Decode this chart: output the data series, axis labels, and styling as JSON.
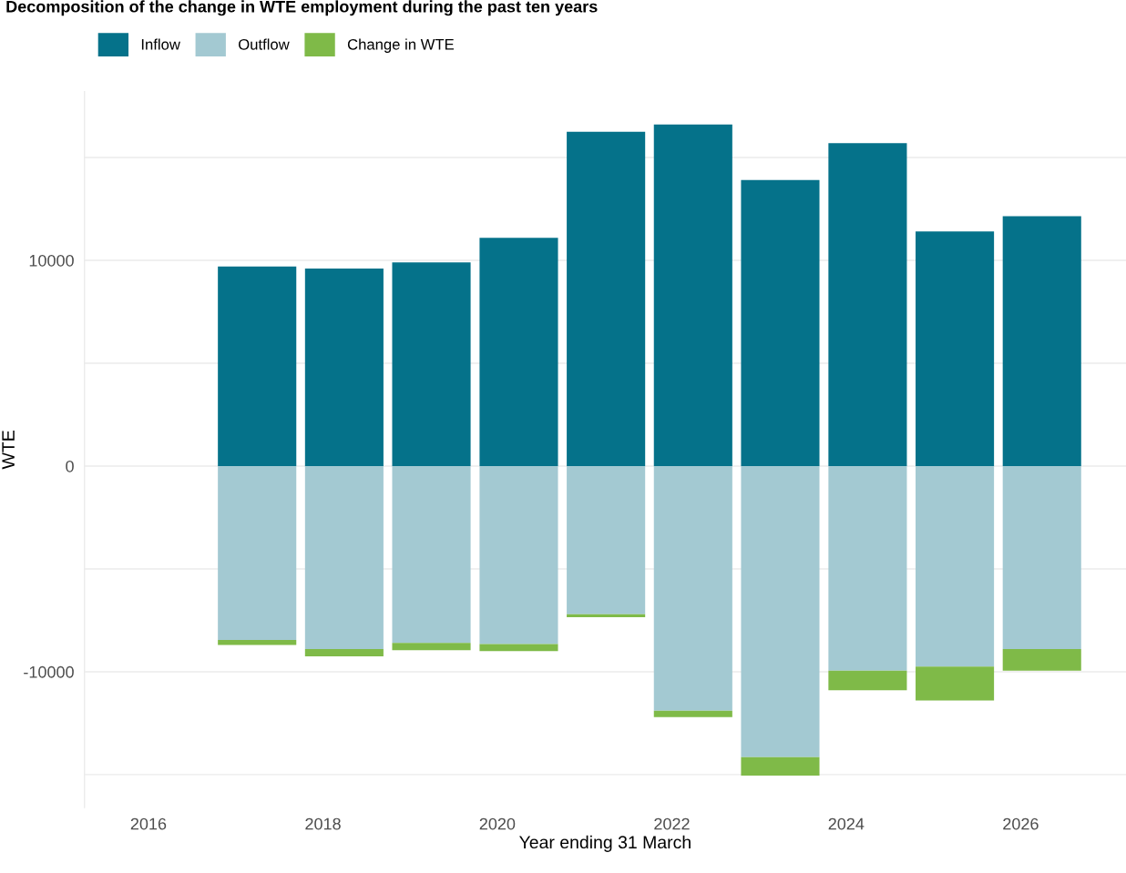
{
  "chart_data": {
    "type": "bar",
    "title": "Decomposition of the change in WTE employment during the past ten years",
    "xlabel": "Year ending 31 March",
    "ylabel": "WTE",
    "x": [
      "2017-03-31",
      "2018-03-31",
      "2019-03-31",
      "2020-03-31",
      "2021-03-31",
      "2022-03-31",
      "2023-03-31",
      "2024-03-31",
      "2025-03-31",
      "2026-03-31"
    ],
    "stacked": true,
    "series": [
      {
        "name": "Inflow",
        "color": "#05728a",
        "values": [
          9700,
          9600,
          9900,
          11100,
          16250,
          16600,
          13900,
          15700,
          11400,
          12150
        ]
      },
      {
        "name": "Outflow",
        "color": "#a3c9d2",
        "values": [
          -8450,
          -8900,
          -8600,
          -8650,
          -7200,
          -11900,
          -14150,
          -9950,
          -9750,
          -8900
        ]
      },
      {
        "name": "Change in WTE",
        "color": "#7fba48",
        "values": [
          -250,
          -350,
          -350,
          -350,
          -150,
          -300,
          -900,
          -950,
          -1650,
          -1050
        ]
      }
    ],
    "ylim": [
      -16600,
      18200
    ],
    "yticks": [
      {
        "value": -15000,
        "label": null
      },
      -10000,
      {
        "value": -5000,
        "label": null
      },
      0,
      {
        "value": 5000,
        "label": null
      },
      10000,
      {
        "value": 15000,
        "label": null
      }
    ],
    "xlim": [
      "2015-04-08",
      "2027-03-18"
    ],
    "xticks": [
      {
        "value": "2016-01-01",
        "label": "2016"
      },
      {
        "value": "2018-01-01",
        "label": "2018"
      },
      {
        "value": "2020-01-01",
        "label": "2020"
      },
      {
        "value": "2022-01-01",
        "label": "2022"
      },
      {
        "value": "2024-01-01",
        "label": "2024"
      },
      {
        "value": "2026-01-01",
        "label": "2026"
      }
    ],
    "grid": "y",
    "legend": "top left"
  }
}
